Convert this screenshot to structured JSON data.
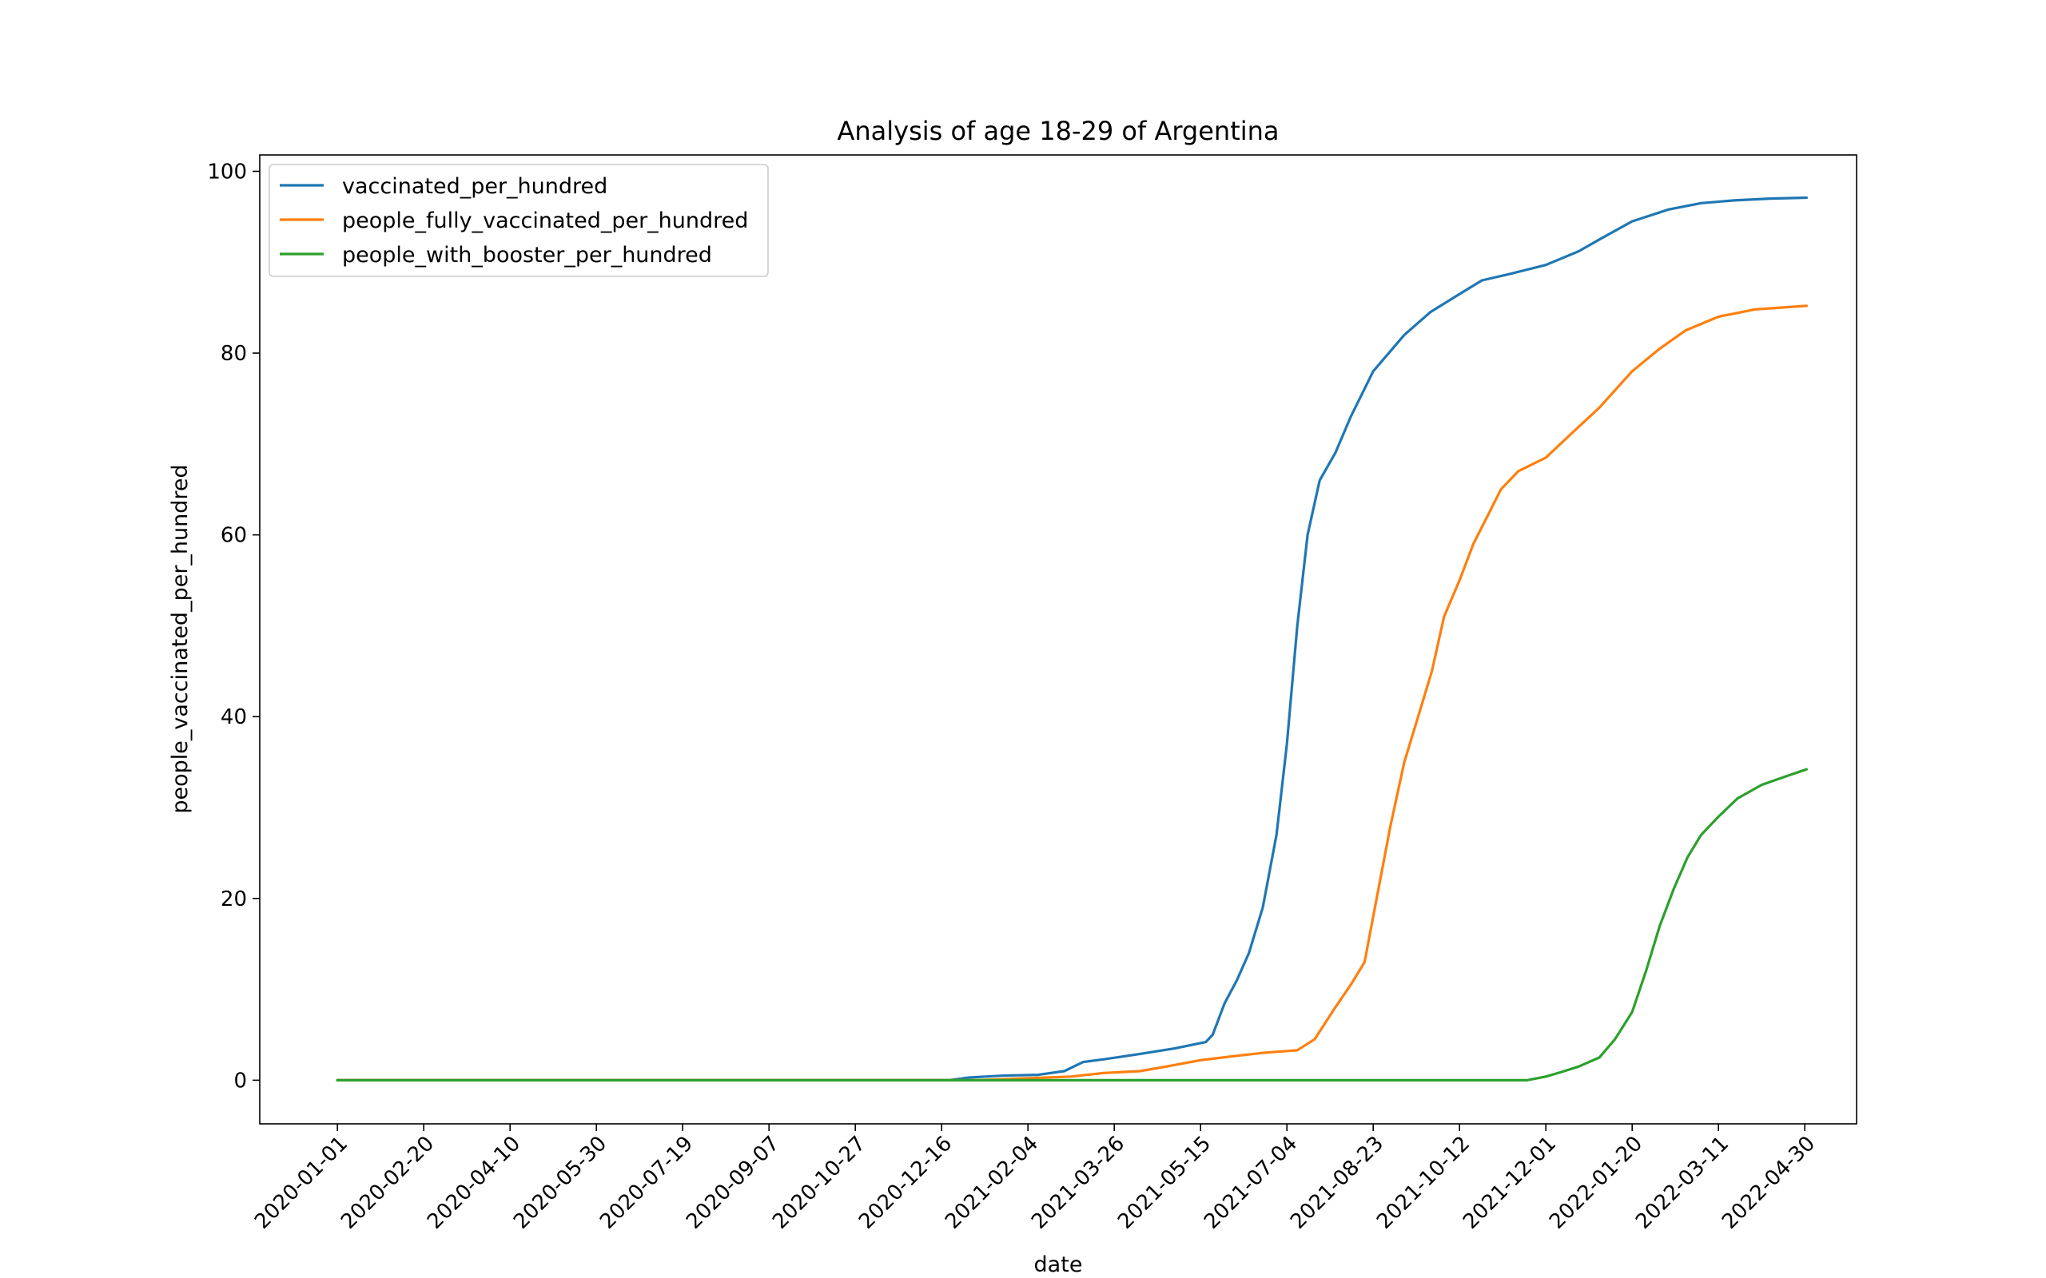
{
  "chart_data": {
    "type": "line",
    "title": "Analysis of age 18-29 of Argentina",
    "xlabel": "date",
    "ylabel": "people_vaccinated_per_hundred",
    "xlim": [
      "2019-11-17",
      "2022-05-30"
    ],
    "ylim": [
      -4.8,
      101.8
    ],
    "x_ticks": [
      "2020-01-01",
      "2020-02-20",
      "2020-04-10",
      "2020-05-30",
      "2020-07-19",
      "2020-09-07",
      "2020-10-27",
      "2020-12-16",
      "2021-02-04",
      "2021-03-26",
      "2021-05-15",
      "2021-07-04",
      "2021-08-23",
      "2021-10-12",
      "2021-12-01",
      "2022-01-20",
      "2022-03-11",
      "2022-04-30"
    ],
    "y_ticks": [
      0,
      20,
      40,
      60,
      80,
      100
    ],
    "legend": "upper-left",
    "grid": false,
    "series": [
      {
        "name": "vaccinated_per_hundred",
        "color": "#1f77b4",
        "points": [
          [
            "2020-01-01",
            0
          ],
          [
            "2020-12-20",
            0
          ],
          [
            "2021-01-01",
            0.3
          ],
          [
            "2021-01-20",
            0.5
          ],
          [
            "2021-02-10",
            0.6
          ],
          [
            "2021-02-25",
            1.0
          ],
          [
            "2021-03-08",
            2.0
          ],
          [
            "2021-03-20",
            2.3
          ],
          [
            "2021-04-10",
            2.9
          ],
          [
            "2021-04-30",
            3.5
          ],
          [
            "2021-05-18",
            4.2
          ],
          [
            "2021-05-22",
            5.0
          ],
          [
            "2021-05-29",
            8.5
          ],
          [
            "2021-06-05",
            11.0
          ],
          [
            "2021-06-12",
            14.0
          ],
          [
            "2021-06-20",
            19.0
          ],
          [
            "2021-06-28",
            27.0
          ],
          [
            "2021-07-04",
            37.0
          ],
          [
            "2021-07-10",
            50.0
          ],
          [
            "2021-07-16",
            60.0
          ],
          [
            "2021-07-23",
            66.0
          ],
          [
            "2021-08-01",
            69.0
          ],
          [
            "2021-08-10",
            73.0
          ],
          [
            "2021-08-23",
            78.0
          ],
          [
            "2021-09-10",
            82.0
          ],
          [
            "2021-09-25",
            84.5
          ],
          [
            "2021-10-12",
            86.5
          ],
          [
            "2021-10-25",
            88.0
          ],
          [
            "2021-11-10",
            88.7
          ],
          [
            "2021-12-01",
            89.7
          ],
          [
            "2021-12-20",
            91.2
          ],
          [
            "2022-01-01",
            92.5
          ],
          [
            "2022-01-20",
            94.5
          ],
          [
            "2022-02-10",
            95.8
          ],
          [
            "2022-03-01",
            96.5
          ],
          [
            "2022-03-20",
            96.8
          ],
          [
            "2022-04-10",
            97.0
          ],
          [
            "2022-05-01",
            97.1
          ]
        ]
      },
      {
        "name": "people_fully_vaccinated_per_hundred",
        "color": "#ff7f0e",
        "points": [
          [
            "2020-01-01",
            0
          ],
          [
            "2021-01-05",
            0
          ],
          [
            "2021-02-01",
            0.2
          ],
          [
            "2021-03-01",
            0.4
          ],
          [
            "2021-03-20",
            0.8
          ],
          [
            "2021-04-10",
            1.0
          ],
          [
            "2021-04-25",
            1.5
          ],
          [
            "2021-05-15",
            2.2
          ],
          [
            "2021-06-01",
            2.6
          ],
          [
            "2021-06-20",
            3.0
          ],
          [
            "2021-07-10",
            3.3
          ],
          [
            "2021-07-20",
            4.5
          ],
          [
            "2021-08-01",
            8.0
          ],
          [
            "2021-08-10",
            10.5
          ],
          [
            "2021-08-18",
            13.0
          ],
          [
            "2021-08-25",
            20.0
          ],
          [
            "2021-09-02",
            28.0
          ],
          [
            "2021-09-10",
            35.0
          ],
          [
            "2021-09-18",
            40.0
          ],
          [
            "2021-09-26",
            45.0
          ],
          [
            "2021-10-03",
            51.0
          ],
          [
            "2021-10-12",
            55.0
          ],
          [
            "2021-10-20",
            59.0
          ],
          [
            "2021-10-28",
            62.0
          ],
          [
            "2021-11-05",
            65.0
          ],
          [
            "2021-11-15",
            67.0
          ],
          [
            "2021-12-01",
            68.5
          ],
          [
            "2021-12-15",
            71.0
          ],
          [
            "2022-01-01",
            74.0
          ],
          [
            "2022-01-20",
            78.0
          ],
          [
            "2022-02-05",
            80.5
          ],
          [
            "2022-02-20",
            82.5
          ],
          [
            "2022-03-11",
            84.0
          ],
          [
            "2022-04-01",
            84.8
          ],
          [
            "2022-05-01",
            85.2
          ]
        ]
      },
      {
        "name": "people_with_booster_per_hundred",
        "color": "#2ca02c",
        "points": [
          [
            "2020-01-01",
            0
          ],
          [
            "2021-11-20",
            0
          ],
          [
            "2021-12-01",
            0.4
          ],
          [
            "2021-12-10",
            0.9
          ],
          [
            "2021-12-20",
            1.5
          ],
          [
            "2022-01-01",
            2.5
          ],
          [
            "2022-01-10",
            4.5
          ],
          [
            "2022-01-20",
            7.5
          ],
          [
            "2022-01-28",
            12.0
          ],
          [
            "2022-02-05",
            17.0
          ],
          [
            "2022-02-13",
            21.0
          ],
          [
            "2022-02-21",
            24.5
          ],
          [
            "2022-03-01",
            27.0
          ],
          [
            "2022-03-11",
            29.0
          ],
          [
            "2022-03-22",
            31.0
          ],
          [
            "2022-04-05",
            32.5
          ],
          [
            "2022-04-20",
            33.5
          ],
          [
            "2022-05-01",
            34.2
          ]
        ]
      }
    ]
  }
}
